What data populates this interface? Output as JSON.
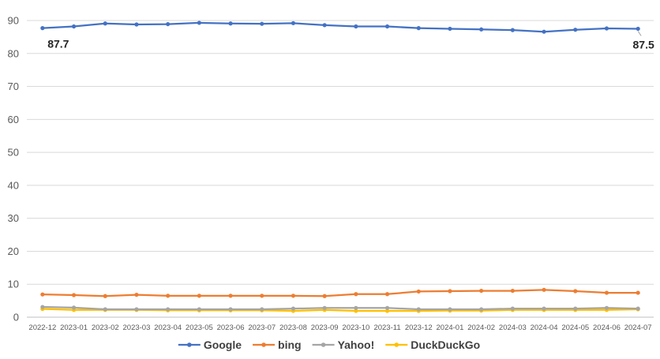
{
  "chart_data": {
    "type": "line",
    "title": "",
    "xlabel": "",
    "ylabel": "",
    "ylim": [
      0,
      90
    ],
    "yticks": [
      0,
      10,
      20,
      30,
      40,
      50,
      60,
      70,
      80,
      90
    ],
    "grid": true,
    "legend_position": "bottom",
    "categories": [
      "2022-12",
      "2023-01",
      "2023-02",
      "2023-03",
      "2023-04",
      "2023-05",
      "2023-06",
      "2023-07",
      "2023-08",
      "2023-09",
      "2023-10",
      "2023-11",
      "2023-12",
      "2024-01",
      "2024-02",
      "2024-03",
      "2024-04",
      "2024-05",
      "2024-06",
      "2024-07"
    ],
    "series": [
      {
        "name": "Google",
        "color": "#4472C4",
        "values": [
          87.7,
          88.2,
          89.1,
          88.8,
          88.9,
          89.3,
          89.1,
          89.0,
          89.2,
          88.6,
          88.2,
          88.2,
          87.7,
          87.5,
          87.3,
          87.1,
          86.6,
          87.2,
          87.6,
          87.5
        ]
      },
      {
        "name": "bing",
        "color": "#ED7D31",
        "values": [
          6.9,
          6.7,
          6.4,
          6.8,
          6.5,
          6.5,
          6.5,
          6.5,
          6.5,
          6.4,
          7.0,
          7.0,
          7.8,
          7.9,
          8.0,
          8.0,
          8.3,
          7.9,
          7.4,
          7.4
        ]
      },
      {
        "name": "Yahoo!",
        "color": "#A5A5A5",
        "values": [
          3.1,
          2.9,
          2.4,
          2.4,
          2.4,
          2.4,
          2.4,
          2.4,
          2.6,
          2.8,
          2.8,
          2.8,
          2.4,
          2.4,
          2.4,
          2.6,
          2.6,
          2.6,
          2.8,
          2.6
        ]
      },
      {
        "name": "DuckDuckGo",
        "color": "#FFC000",
        "values": [
          2.5,
          2.2,
          2.2,
          2.2,
          2.1,
          2.1,
          2.1,
          2.1,
          1.9,
          2.2,
          1.9,
          1.9,
          1.9,
          2.0,
          2.0,
          2.2,
          2.2,
          2.2,
          2.2,
          2.4
        ]
      }
    ],
    "data_labels": [
      {
        "series": "Google",
        "index": 0,
        "text": "87.7"
      },
      {
        "series": "Google",
        "index": 19,
        "text": "87.5"
      }
    ]
  }
}
